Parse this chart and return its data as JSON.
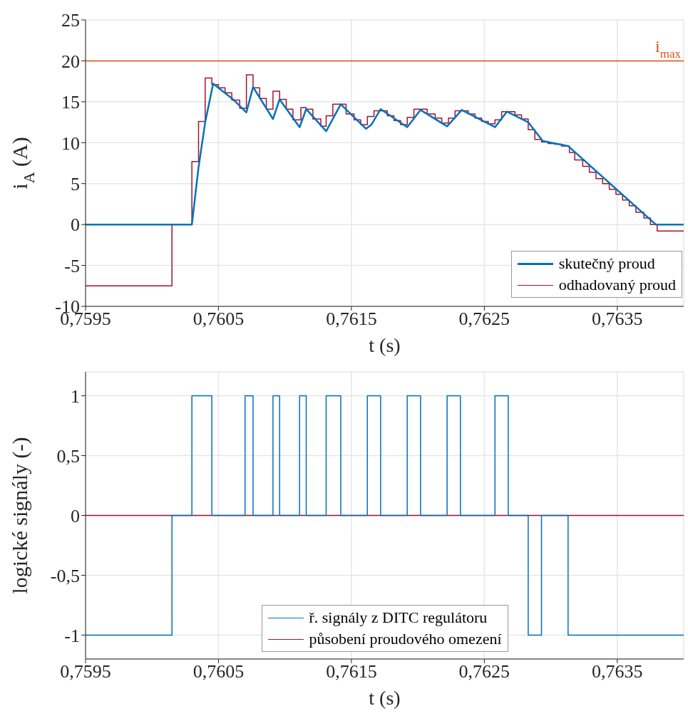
{
  "chart_data": [
    {
      "type": "line",
      "xlabel": "t (s)",
      "ylabel": "i$_{A}$ (A)",
      "xlim": [
        0.7595,
        0.764
      ],
      "ylim": [
        -10,
        25
      ],
      "xticks": [
        {
          "value": 0.7595,
          "label": "0,7595"
        },
        {
          "value": 0.7605,
          "label": "0,7605"
        },
        {
          "value": 0.7615,
          "label": "0,7615"
        },
        {
          "value": 0.7625,
          "label": "0,7625"
        },
        {
          "value": 0.7635,
          "label": "0,7635"
        }
      ],
      "yticks": [
        -10,
        -5,
        0,
        5,
        10,
        15,
        20,
        25
      ],
      "grid": true,
      "legend": "bottom right",
      "ref_lines": [
        {
          "axis": "y",
          "value": 20,
          "label": "i$_{max}$",
          "color": "#d95319"
        }
      ],
      "series": [
        {
          "name": "skutečný proud",
          "color": "#0072bd",
          "type": "line",
          "x": [
            0.7595,
            0.7603,
            0.76035,
            0.7604,
            0.76046,
            0.76061,
            0.76071,
            0.76076,
            0.76091,
            0.76096,
            0.76111,
            0.76116,
            0.76131,
            0.76142,
            0.76161,
            0.76165,
            0.76172,
            0.76192,
            0.76202,
            0.76222,
            0.76233,
            0.76258,
            0.76267,
            0.76283,
            0.76294,
            0.76313,
            0.76379,
            0.764
          ],
          "values": [
            0,
            0,
            7,
            12.5,
            17.2,
            15.3,
            13.7,
            16.8,
            12.9,
            15.3,
            11.9,
            14.1,
            11.4,
            14.7,
            11.7,
            12.2,
            14.1,
            11.9,
            14,
            12,
            14,
            11.9,
            13.8,
            12.5,
            10.2,
            9.6,
            0,
            0
          ]
        },
        {
          "name": "odhadovaný proud",
          "color": "#a2142f",
          "type": "step",
          "x": [
            0.7595,
            0.76015,
            0.7603,
            0.76035,
            0.7604,
            0.76045,
            0.7605,
            0.76055,
            0.7606,
            0.76066,
            0.76071,
            0.76076,
            0.76081,
            0.76086,
            0.76091,
            0.76096,
            0.76101,
            0.76106,
            0.76112,
            0.76116,
            0.76121,
            0.76127,
            0.76131,
            0.76136,
            0.76146,
            0.76152,
            0.76157,
            0.76162,
            0.76167,
            0.76177,
            0.76182,
            0.76187,
            0.76192,
            0.76197,
            0.76207,
            0.76213,
            0.76218,
            0.76223,
            0.76228,
            0.76238,
            0.76243,
            0.76248,
            0.76253,
            0.76258,
            0.76263,
            0.76273,
            0.76278,
            0.76283,
            0.76288,
            0.76293,
            0.76298,
            0.76303,
            0.76308,
            0.76314,
            0.76318,
            0.76324,
            0.76329,
            0.76334,
            0.76339,
            0.76344,
            0.76349,
            0.76354,
            0.76359,
            0.76364,
            0.7637,
            0.76375,
            0.7638,
            0.764
          ],
          "values": [
            -7.5,
            0,
            7.7,
            12.6,
            17.9,
            17.1,
            16.7,
            16.1,
            15.2,
            14.2,
            18.3,
            16.7,
            15.4,
            14.1,
            16.3,
            15.3,
            14.1,
            12.8,
            14.3,
            14.1,
            12.9,
            12,
            13.3,
            14.7,
            13.5,
            12.8,
            12.2,
            13.2,
            13.9,
            13.3,
            12.7,
            12.2,
            13.1,
            14.1,
            13.5,
            13,
            12.4,
            13,
            13.9,
            13.5,
            13,
            12.6,
            12.3,
            12.8,
            13.8,
            13.4,
            12.9,
            11.6,
            10.4,
            10.1,
            9.9,
            9.8,
            9.6,
            8.8,
            7.9,
            7.1,
            6.4,
            5.6,
            5,
            4.3,
            3.7,
            3,
            2.3,
            1.5,
            0.8,
            0,
            -0.8,
            -0.8
          ]
        }
      ]
    },
    {
      "type": "line",
      "xlabel": "t (s)",
      "ylabel": "logické signály (-)",
      "xlim": [
        0.7595,
        0.764
      ],
      "ylim": [
        -1.2,
        1.2
      ],
      "xticks": [
        {
          "value": 0.7595,
          "label": "0,7595"
        },
        {
          "value": 0.7605,
          "label": "0,7605"
        },
        {
          "value": 0.7615,
          "label": "0,7615"
        },
        {
          "value": 0.7625,
          "label": "0,7625"
        },
        {
          "value": 0.7635,
          "label": "0,7635"
        }
      ],
      "yticks": [
        -1,
        {
          "value": -0.5,
          "label": "-0,5"
        },
        0,
        {
          "value": 0.5,
          "label": "0,5"
        },
        1
      ],
      "grid": true,
      "legend": "bottom",
      "series": [
        {
          "name": "ř. signály z DITC regulátoru",
          "color": "#0072bd",
          "type": "step",
          "x": [
            0.7595,
            0.76015,
            0.7603,
            0.76045,
            0.7607,
            0.76076,
            0.76091,
            0.76096,
            0.76111,
            0.76116,
            0.76131,
            0.76142,
            0.76162,
            0.76172,
            0.76192,
            0.76202,
            0.76222,
            0.76232,
            0.76258,
            0.76268,
            0.76283,
            0.76293,
            0.76313,
            0.764
          ],
          "values": [
            -1,
            0,
            1,
            0,
            1,
            0,
            1,
            0,
            1,
            0,
            1,
            0,
            1,
            0,
            1,
            0,
            1,
            0,
            1,
            0,
            -1,
            0,
            -1,
            -1
          ]
        },
        {
          "name": "působení proudového omezení",
          "color": "#a2142f",
          "type": "line",
          "x": [
            0.7595,
            0.764
          ],
          "values": [
            0,
            0
          ]
        }
      ]
    }
  ]
}
